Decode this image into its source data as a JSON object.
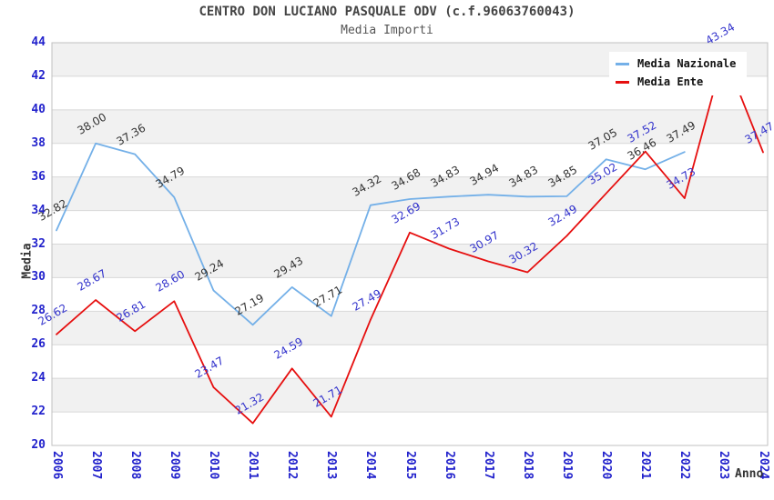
{
  "chart_data": {
    "type": "line",
    "title": "CENTRO DON LUCIANO PASQUALE ODV (c.f.96063760043)",
    "subtitle": "Media Importi",
    "xlabel": "Anno",
    "ylabel": "Media",
    "ylim": [
      20,
      44
    ],
    "ytick_step": 2,
    "grid": true,
    "legend_position": "top-right",
    "plot_band_colors": [
      "#f1f1f1",
      "#ffffff"
    ],
    "grid_color": "#d8d8d8",
    "border_color": "#c0c0c0",
    "axis_text_color": "#2222cc",
    "categories": [
      "2006",
      "2007",
      "2008",
      "2009",
      "2010",
      "2011",
      "2012",
      "2013",
      "2014",
      "2015",
      "2016",
      "2017",
      "2018",
      "2019",
      "2020",
      "2021",
      "2022",
      "2023",
      "2024"
    ],
    "series": [
      {
        "name": "Media Nazionale",
        "color": "#74b0e8",
        "label_color": "#333333",
        "values": [
          32.82,
          38.0,
          37.36,
          34.79,
          29.24,
          27.19,
          29.43,
          27.71,
          34.32,
          34.68,
          34.83,
          34.94,
          34.83,
          34.85,
          37.05,
          36.46,
          37.49,
          null,
          null
        ]
      },
      {
        "name": "Media Ente",
        "color": "#e60f0f",
        "label_color": "#3333cc",
        "values": [
          26.62,
          28.67,
          26.81,
          28.6,
          23.47,
          21.32,
          24.59,
          21.71,
          27.49,
          32.69,
          31.73,
          30.97,
          30.32,
          32.49,
          35.02,
          37.52,
          34.73,
          43.34,
          37.47
        ]
      }
    ]
  }
}
